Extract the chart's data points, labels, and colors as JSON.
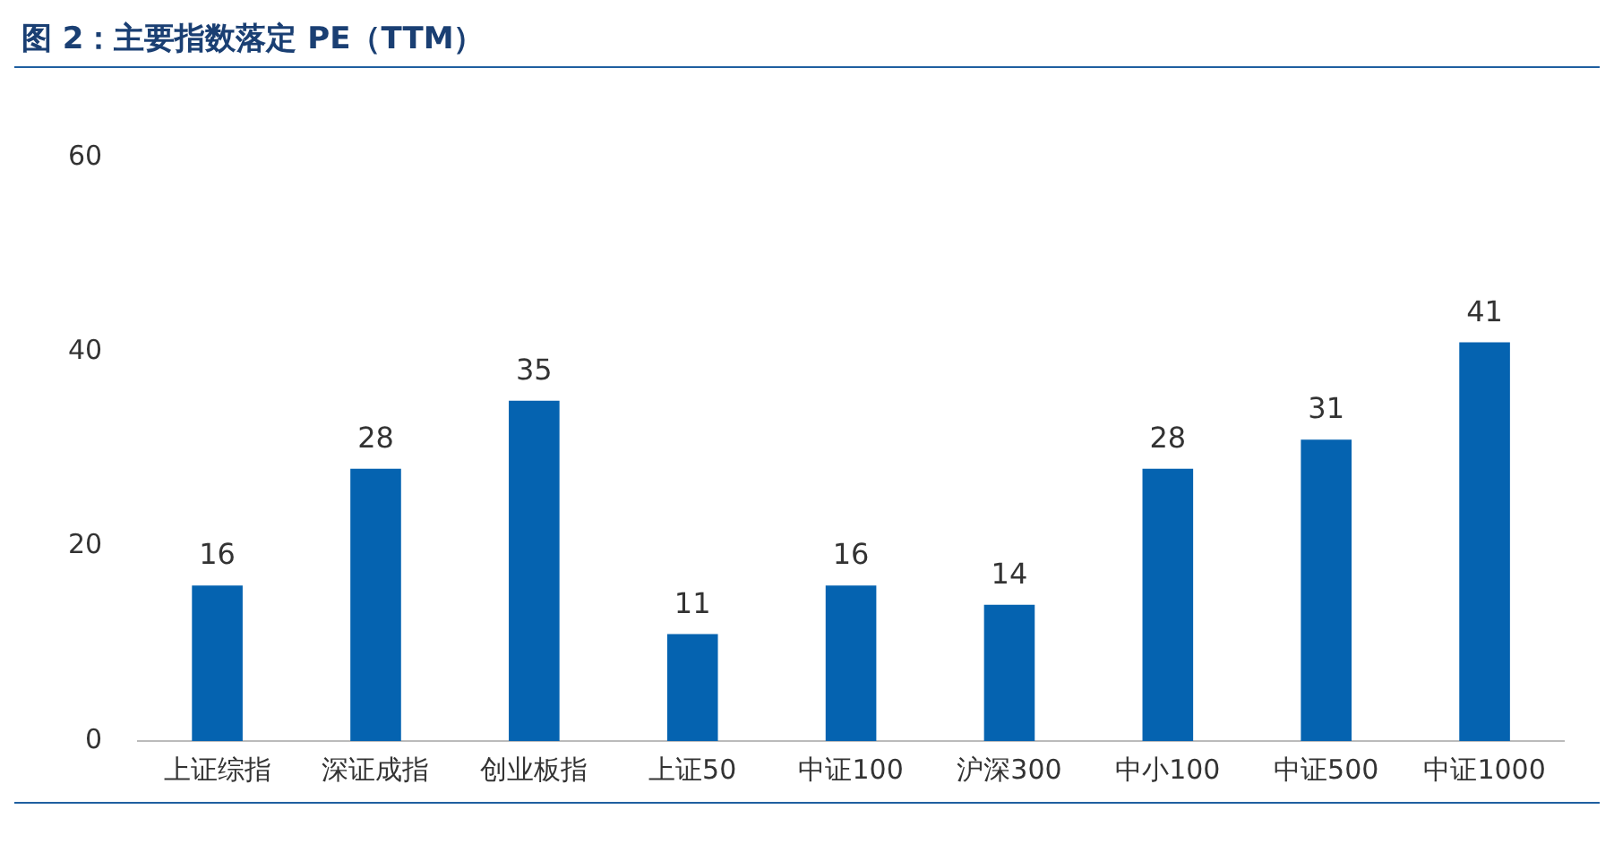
{
  "chart_data": {
    "type": "bar",
    "title": "图 2：主要指数落定 PE（TTM）",
    "categories": [
      "上证综指",
      "深证成指",
      "创业板指",
      "上证50",
      "中证100",
      "沪深300",
      "中小100",
      "中证500",
      "中证1000"
    ],
    "values": [
      16,
      28,
      35,
      11,
      16,
      14,
      28,
      31,
      41
    ],
    "color": "#0563b0",
    "ylim": [
      0,
      60
    ],
    "yticks": [
      0,
      20,
      40,
      60
    ],
    "grid": false,
    "legend": false,
    "data_labels": true
  }
}
